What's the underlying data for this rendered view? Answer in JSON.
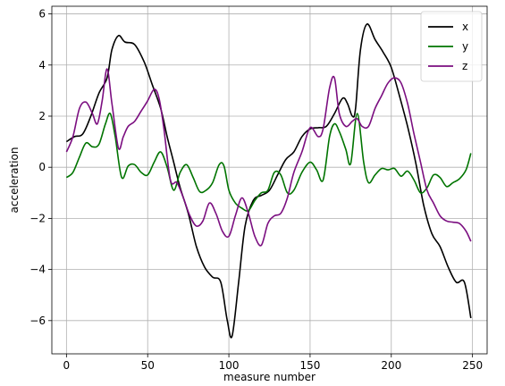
{
  "chart_data": {
    "type": "line",
    "title": "",
    "xlabel": "measure number",
    "ylabel": "acceleration",
    "xlim": [
      -9,
      259
    ],
    "ylim": [
      -7.3,
      6.3
    ],
    "xticks": [
      0,
      50,
      100,
      150,
      200,
      250
    ],
    "yticks": [
      -6,
      -4,
      -2,
      0,
      2,
      4,
      6
    ],
    "ytick_labels": [
      "−6",
      "−4",
      "−2",
      "0",
      "2",
      "4",
      "6"
    ],
    "grid": true,
    "legend_position": "top-right",
    "series": [
      {
        "name": "x",
        "color": "#000000",
        "points": [
          [
            0,
            1.0
          ],
          [
            5,
            1.2
          ],
          [
            10,
            1.3
          ],
          [
            15,
            2.0
          ],
          [
            20,
            2.9
          ],
          [
            25,
            3.5
          ],
          [
            28,
            4.6
          ],
          [
            32,
            5.15
          ],
          [
            36,
            4.9
          ],
          [
            42,
            4.8
          ],
          [
            48,
            4.1
          ],
          [
            53,
            3.2
          ],
          [
            58,
            2.3
          ],
          [
            62,
            1.2
          ],
          [
            66,
            0.2
          ],
          [
            70,
            -0.8
          ],
          [
            75,
            -1.8
          ],
          [
            80,
            -3.1
          ],
          [
            85,
            -3.9
          ],
          [
            90,
            -4.3
          ],
          [
            95,
            -4.5
          ],
          [
            99,
            -6.0
          ],
          [
            102,
            -6.6
          ],
          [
            106,
            -4.5
          ],
          [
            110,
            -2.3
          ],
          [
            115,
            -1.3
          ],
          [
            120,
            -1.1
          ],
          [
            125,
            -0.9
          ],
          [
            130,
            -0.3
          ],
          [
            135,
            0.3
          ],
          [
            140,
            0.6
          ],
          [
            145,
            1.2
          ],
          [
            150,
            1.5
          ],
          [
            155,
            1.55
          ],
          [
            160,
            1.6
          ],
          [
            165,
            2.1
          ],
          [
            170,
            2.7
          ],
          [
            173,
            2.5
          ],
          [
            176,
            2.0
          ],
          [
            178,
            2.3
          ],
          [
            181,
            4.6
          ],
          [
            185,
            5.6
          ],
          [
            190,
            5.0
          ],
          [
            195,
            4.5
          ],
          [
            200,
            3.9
          ],
          [
            205,
            2.8
          ],
          [
            210,
            1.6
          ],
          [
            215,
            0.2
          ],
          [
            220,
            -1.5
          ],
          [
            225,
            -2.6
          ],
          [
            230,
            -3.1
          ],
          [
            235,
            -3.9
          ],
          [
            240,
            -4.5
          ],
          [
            245,
            -4.5
          ],
          [
            249,
            -5.9
          ]
        ]
      },
      {
        "name": "y",
        "color": "#007400",
        "points": [
          [
            0,
            -0.4
          ],
          [
            4,
            -0.2
          ],
          [
            8,
            0.4
          ],
          [
            12,
            0.95
          ],
          [
            16,
            0.8
          ],
          [
            20,
            0.9
          ],
          [
            24,
            1.7
          ],
          [
            27,
            2.1
          ],
          [
            30,
            1.2
          ],
          [
            34,
            -0.4
          ],
          [
            38,
            0.05
          ],
          [
            42,
            0.1
          ],
          [
            46,
            -0.2
          ],
          [
            50,
            -0.3
          ],
          [
            54,
            0.2
          ],
          [
            58,
            0.6
          ],
          [
            62,
            0.0
          ],
          [
            66,
            -0.9
          ],
          [
            70,
            -0.2
          ],
          [
            74,
            0.1
          ],
          [
            78,
            -0.4
          ],
          [
            82,
            -0.95
          ],
          [
            86,
            -0.9
          ],
          [
            90,
            -0.6
          ],
          [
            94,
            0.1
          ],
          [
            97,
            0.05
          ],
          [
            100,
            -0.9
          ],
          [
            104,
            -1.4
          ],
          [
            108,
            -1.6
          ],
          [
            112,
            -1.7
          ],
          [
            116,
            -1.3
          ],
          [
            120,
            -1.0
          ],
          [
            124,
            -0.9
          ],
          [
            128,
            -0.2
          ],
          [
            132,
            -0.3
          ],
          [
            136,
            -1.0
          ],
          [
            140,
            -0.9
          ],
          [
            145,
            -0.2
          ],
          [
            150,
            0.2
          ],
          [
            154,
            -0.1
          ],
          [
            158,
            -0.5
          ],
          [
            162,
            1.2
          ],
          [
            165,
            1.7
          ],
          [
            168,
            1.4
          ],
          [
            172,
            0.7
          ],
          [
            175,
            0.15
          ],
          [
            179,
            2.1
          ],
          [
            183,
            0.2
          ],
          [
            186,
            -0.6
          ],
          [
            190,
            -0.3
          ],
          [
            194,
            -0.05
          ],
          [
            198,
            -0.1
          ],
          [
            202,
            -0.05
          ],
          [
            206,
            -0.35
          ],
          [
            210,
            -0.15
          ],
          [
            214,
            -0.5
          ],
          [
            218,
            -1.0
          ],
          [
            222,
            -0.8
          ],
          [
            226,
            -0.3
          ],
          [
            230,
            -0.4
          ],
          [
            234,
            -0.75
          ],
          [
            238,
            -0.6
          ],
          [
            242,
            -0.45
          ],
          [
            246,
            -0.1
          ],
          [
            249,
            0.55
          ]
        ]
      },
      {
        "name": "z",
        "color": "#7b0e80",
        "points": [
          [
            0,
            0.6
          ],
          [
            4,
            1.2
          ],
          [
            8,
            2.3
          ],
          [
            12,
            2.55
          ],
          [
            16,
            2.1
          ],
          [
            19,
            1.7
          ],
          [
            22,
            2.6
          ],
          [
            25,
            3.85
          ],
          [
            28,
            2.5
          ],
          [
            32,
            0.75
          ],
          [
            35,
            1.2
          ],
          [
            38,
            1.6
          ],
          [
            42,
            1.8
          ],
          [
            46,
            2.2
          ],
          [
            50,
            2.6
          ],
          [
            54,
            3.05
          ],
          [
            57,
            2.7
          ],
          [
            60,
            1.5
          ],
          [
            64,
            -0.5
          ],
          [
            68,
            -0.6
          ],
          [
            72,
            -1.2
          ],
          [
            76,
            -1.9
          ],
          [
            80,
            -2.3
          ],
          [
            84,
            -2.1
          ],
          [
            88,
            -1.4
          ],
          [
            92,
            -1.8
          ],
          [
            96,
            -2.5
          ],
          [
            100,
            -2.7
          ],
          [
            104,
            -1.9
          ],
          [
            108,
            -1.2
          ],
          [
            112,
            -1.8
          ],
          [
            116,
            -2.7
          ],
          [
            120,
            -3.05
          ],
          [
            124,
            -2.2
          ],
          [
            128,
            -1.9
          ],
          [
            132,
            -1.8
          ],
          [
            136,
            -1.2
          ],
          [
            140,
            -0.2
          ],
          [
            145,
            0.6
          ],
          [
            150,
            1.55
          ],
          [
            155,
            1.2
          ],
          [
            158,
            1.5
          ],
          [
            162,
            3.1
          ],
          [
            165,
            3.5
          ],
          [
            168,
            2.1
          ],
          [
            172,
            1.6
          ],
          [
            176,
            1.8
          ],
          [
            179,
            1.9
          ],
          [
            182,
            1.6
          ],
          [
            186,
            1.6
          ],
          [
            190,
            2.3
          ],
          [
            194,
            2.8
          ],
          [
            198,
            3.3
          ],
          [
            202,
            3.5
          ],
          [
            206,
            3.3
          ],
          [
            210,
            2.5
          ],
          [
            214,
            1.3
          ],
          [
            218,
            0.2
          ],
          [
            222,
            -0.9
          ],
          [
            226,
            -1.4
          ],
          [
            230,
            -1.9
          ],
          [
            234,
            -2.1
          ],
          [
            238,
            -2.15
          ],
          [
            242,
            -2.2
          ],
          [
            246,
            -2.5
          ],
          [
            249,
            -2.9
          ]
        ]
      }
    ]
  }
}
